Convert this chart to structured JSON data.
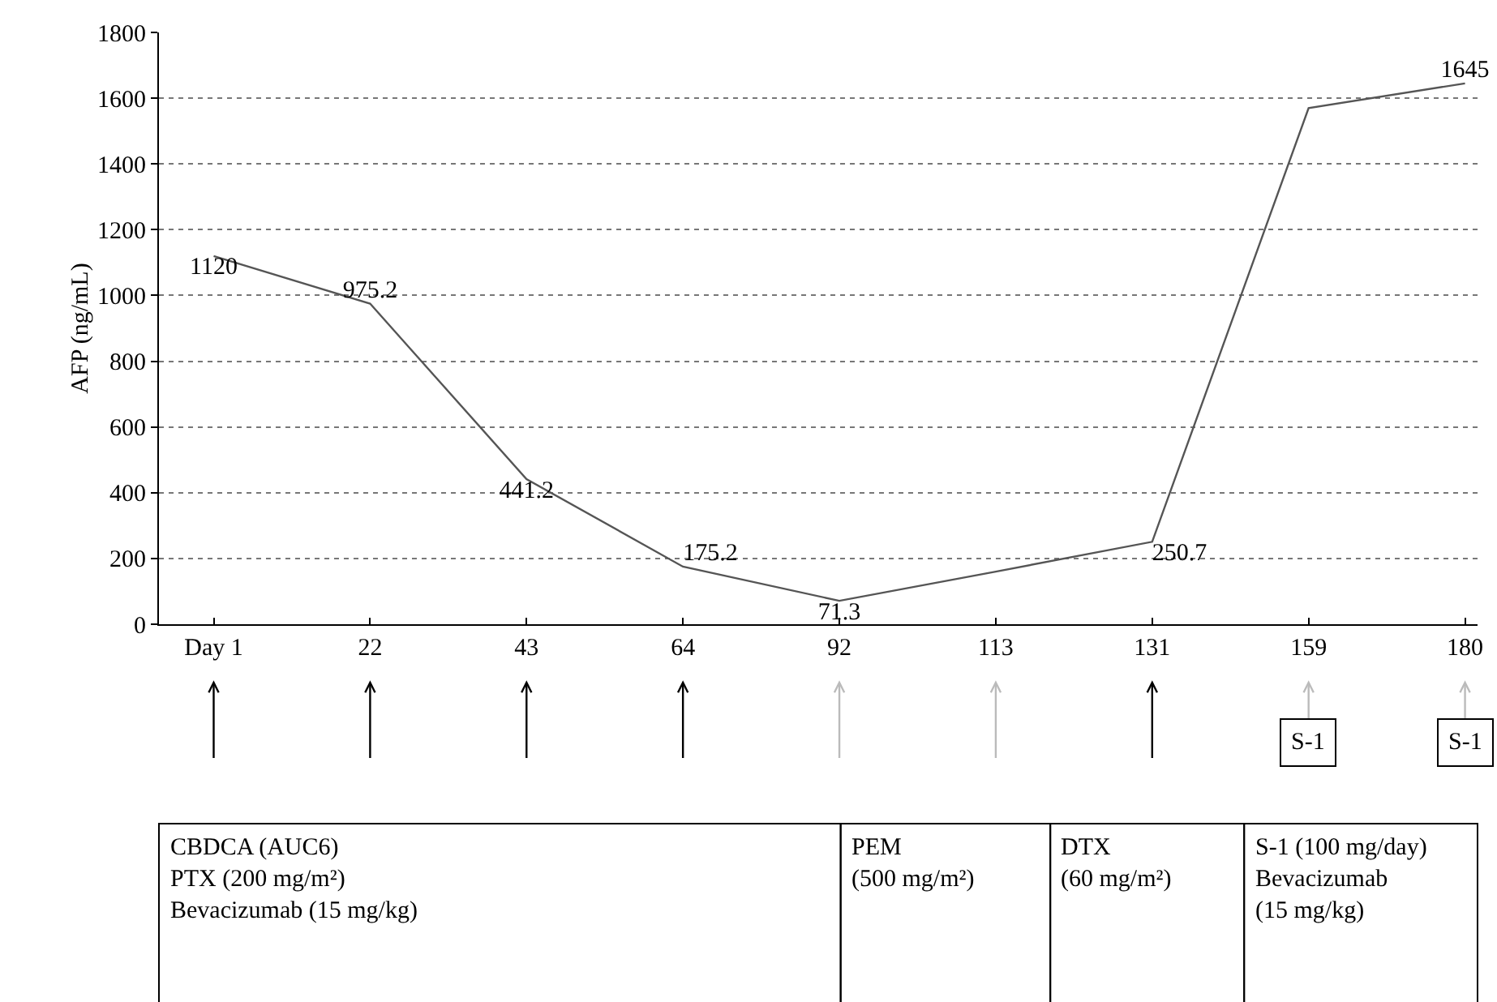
{
  "chart_data": {
    "type": "line",
    "ylabel": "AFP (ng/mL)",
    "categories": [
      "Day 1",
      "22",
      "43",
      "64",
      "92",
      "113",
      "131",
      "159",
      "180"
    ],
    "values": [
      1120,
      975.2,
      441.2,
      175.2,
      71.3,
      160,
      250.7,
      1570,
      1645
    ],
    "value_labels": [
      "1120",
      "975.2",
      "441.2",
      "175.2",
      "71.3",
      null,
      "250.7",
      null,
      "1645"
    ],
    "color": "#555555",
    "ylim": [
      0,
      1800
    ],
    "yticks": [
      0,
      200,
      400,
      600,
      800,
      1000,
      1200,
      1400,
      1600,
      1800
    ],
    "grid": "y",
    "marker": "none",
    "line_style": "solid",
    "legend": false,
    "annotations": [
      "S-1",
      "S-1",
      "CBDCA (AUC6)\nPTX (200 mg/m²)\nBevacizumab (15 mg/kg)",
      "PEM\n(500 mg/m²)",
      "DTX\n(60 mg/m²)",
      "S-1 (100 mg/day)\nBevacizumab\n(15 mg/kg)"
    ]
  }
}
